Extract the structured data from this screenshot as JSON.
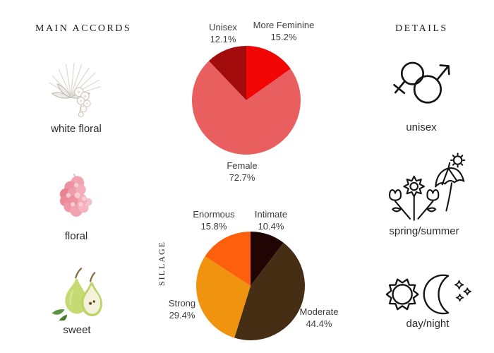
{
  "accords": {
    "title": "MAIN ACCORDS",
    "items": [
      {
        "label": "white floral",
        "icon": "white-floral-illustration"
      },
      {
        "label": "floral",
        "icon": "pink-floral-illustration"
      },
      {
        "label": "sweet",
        "icon": "pear-illustration"
      }
    ]
  },
  "details": {
    "title": "DETAILS",
    "items": [
      {
        "label": "unisex",
        "icon": "unisex-gender-icon"
      },
      {
        "label": "spring/summer",
        "icon": "spring-summer-icon"
      },
      {
        "label": "day/night",
        "icon": "day-night-icon"
      }
    ]
  },
  "chart_data": [
    {
      "type": "pie",
      "name": "gender-votes",
      "direction": "clockwise",
      "start_angle_deg": 0,
      "slices": [
        {
          "label": "More Feminine",
          "value": 15.2,
          "pct_text": "15.2%",
          "color": "#f20505"
        },
        {
          "label": "Female",
          "value": 72.7,
          "pct_text": "72.7%",
          "color": "#e95e5e"
        },
        {
          "label": "Unisex",
          "value": 12.1,
          "pct_text": "12.1%",
          "color": "#a30c0c"
        }
      ]
    },
    {
      "type": "pie",
      "name": "sillage-votes",
      "title": "SILLAGE",
      "direction": "clockwise",
      "start_angle_deg": 0,
      "slices": [
        {
          "label": "Intimate",
          "value": 10.4,
          "pct_text": "10.4%",
          "color": "#200505"
        },
        {
          "label": "Moderate",
          "value": 44.4,
          "pct_text": "44.4%",
          "color": "#452e14"
        },
        {
          "label": "Strong",
          "value": 29.4,
          "pct_text": "29.4%",
          "color": "#f0930e"
        },
        {
          "label": "Enormous",
          "value": 15.8,
          "pct_text": "15.8%",
          "color": "#fd5f0d"
        }
      ]
    }
  ]
}
